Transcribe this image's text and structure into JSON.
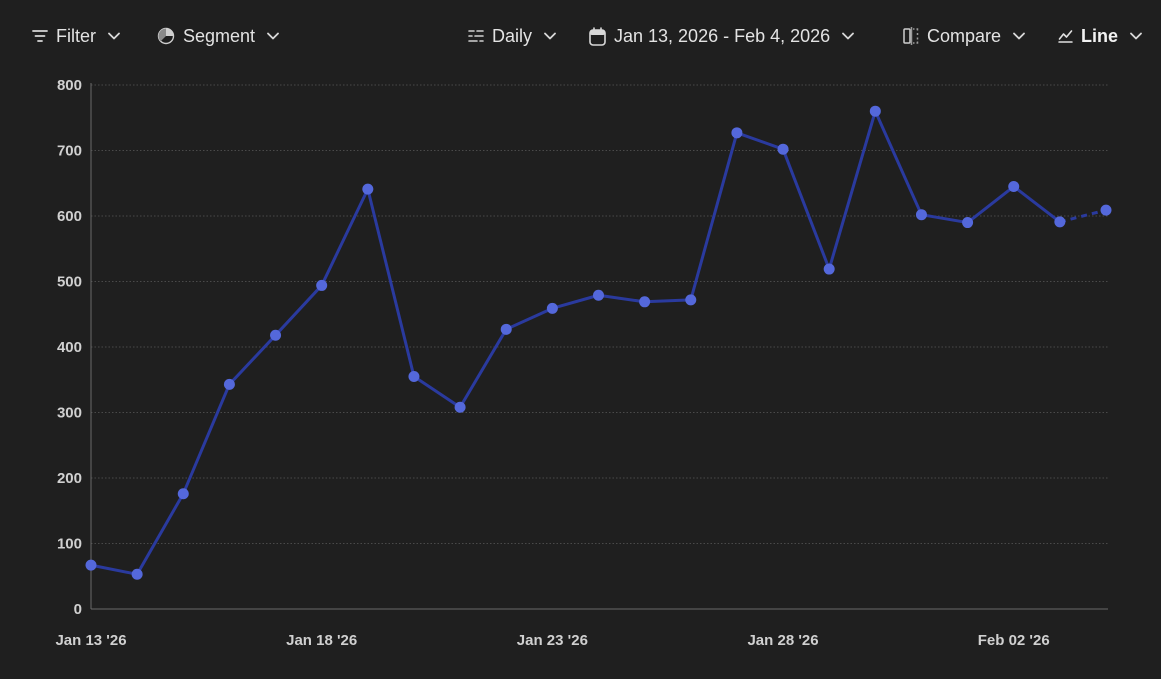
{
  "toolbar": {
    "filter": {
      "label": "Filter",
      "icon": "filter-icon"
    },
    "segment": {
      "label": "Segment",
      "icon": "pie-icon"
    },
    "interval": {
      "label": "Daily",
      "icon": "interval-icon"
    },
    "date_range": {
      "label": "Jan 13, 2026 - Feb 4, 2026",
      "icon": "calendar-icon"
    },
    "compare": {
      "label": "Compare",
      "icon": "compare-icon"
    },
    "chart_type": {
      "label": "Line",
      "icon": "line-chart-icon"
    }
  },
  "colors": {
    "background": "#1f1f1f",
    "line": "#2a3a9e",
    "point": "#5468db",
    "grid": "#4a4a4a",
    "axis_text": "#d0d0d0"
  },
  "chart_data": {
    "type": "line",
    "x": [
      "Jan 13 '26",
      "Jan 14 '26",
      "Jan 15 '26",
      "Jan 16 '26",
      "Jan 17 '26",
      "Jan 18 '26",
      "Jan 19 '26",
      "Jan 20 '26",
      "Jan 21 '26",
      "Jan 22 '26",
      "Jan 23 '26",
      "Jan 24 '26",
      "Jan 25 '26",
      "Jan 26 '26",
      "Jan 27 '26",
      "Jan 28 '26",
      "Jan 29 '26",
      "Jan 30 '26",
      "Jan 31 '26",
      "Feb 01 '26",
      "Feb 02 '26",
      "Feb 03 '26",
      "Feb 04 '26"
    ],
    "values": [
      67,
      53,
      176,
      343,
      418,
      494,
      641,
      355,
      308,
      427,
      459,
      479,
      469,
      472,
      727,
      702,
      519,
      760,
      602,
      590,
      645,
      591,
      609
    ],
    "x_tick_labels": [
      "Jan 13 '26",
      "Jan 18 '26",
      "Jan 23 '26",
      "Jan 28 '26",
      "Feb 02 '26"
    ],
    "x_tick_indices": [
      0,
      5,
      10,
      15,
      20
    ],
    "y_ticks": [
      0,
      100,
      200,
      300,
      400,
      500,
      600,
      700,
      800
    ],
    "ylim": [
      0,
      800
    ],
    "grid": true,
    "last_segment_dashed": true
  }
}
